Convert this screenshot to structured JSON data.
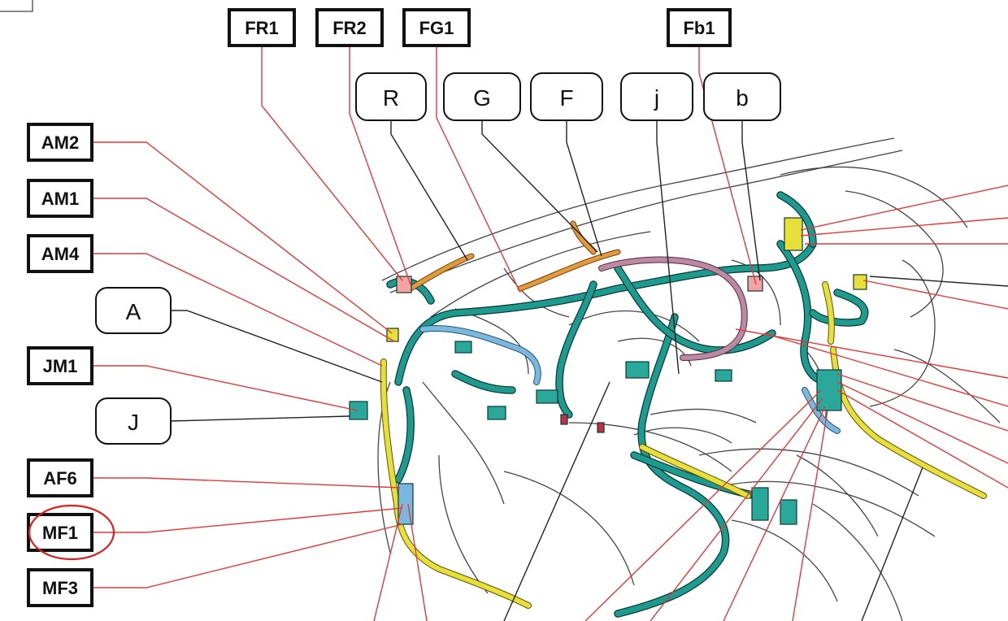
{
  "square_labels": {
    "FR1": "FR1",
    "FR2": "FR2",
    "FG1": "FG1",
    "Fb1": "Fb1",
    "AM2": "AM2",
    "AM1": "AM1",
    "AM4": "AM4",
    "JM1": "JM1",
    "AF6": "AF6",
    "MF1": "MF1",
    "MF3": "MF3"
  },
  "round_labels": {
    "R": "R",
    "G": "G",
    "F": "F",
    "j": "j",
    "b": "b",
    "A": "A",
    "J": "J"
  },
  "highlighted_label": "MF1",
  "colors": {
    "leader_red": "#e23a3a",
    "harness_teal": "#1e9a8e",
    "harness_yellow": "#e8df39",
    "harness_blue": "#7bb8e0",
    "harness_plum": "#b98aa2",
    "highlight_ring": "#e11d1d"
  }
}
